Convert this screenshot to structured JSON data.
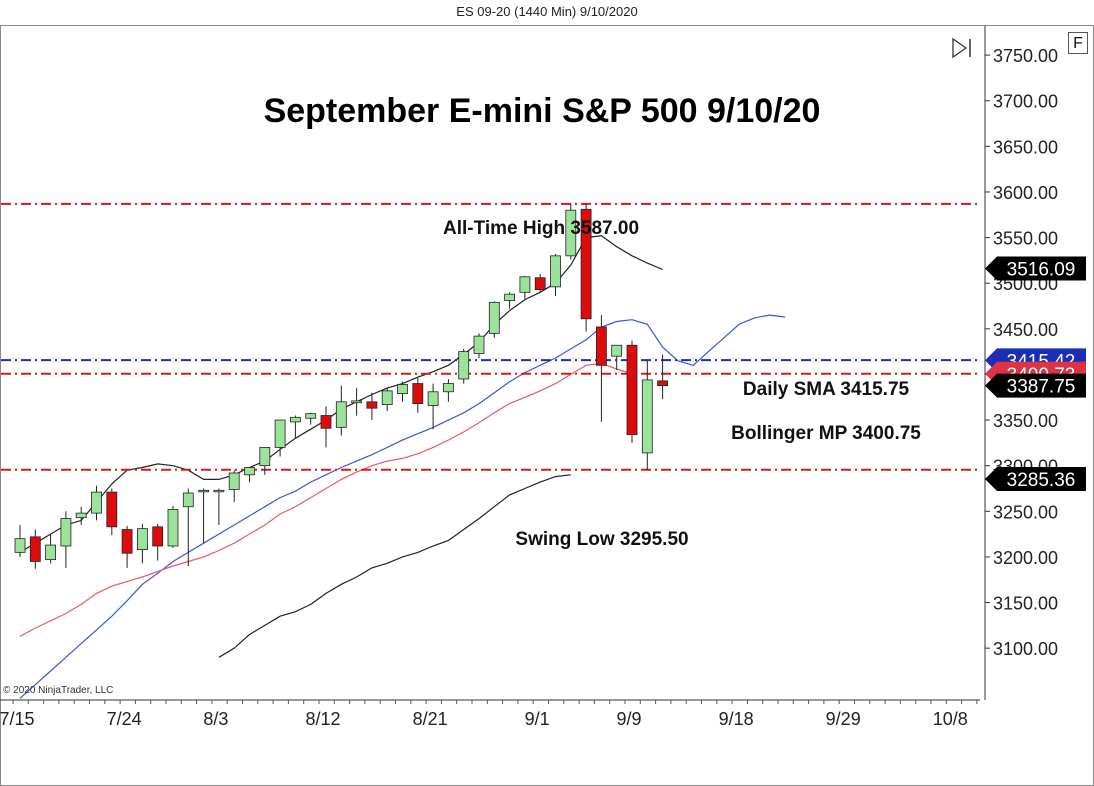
{
  "window": {
    "header": "ES 09-20 (1440 Min)  9/10/2020",
    "f_label": "F",
    "copyright": "© 2020 NinjaTrader, LLC"
  },
  "chart_data": {
    "type": "candlestick",
    "title": "September E-mini S&P 500 9/10/20",
    "ylim": [
      3085,
      3800
    ],
    "y_ticks": [
      "3750.00",
      "3700.00",
      "3650.00",
      "3600.00",
      "3550.00",
      "3500.00",
      "3450.00",
      "3400.00",
      "3350.00",
      "3300.00",
      "3250.00",
      "3200.00",
      "3150.00",
      "3100.00"
    ],
    "y_tick_values": [
      3750,
      3700,
      3650,
      3600,
      3550,
      3500,
      3450,
      3400,
      3350,
      3300,
      3250,
      3200,
      3150,
      3100
    ],
    "x_ticks": [
      "7/15",
      "7/24",
      "8/3",
      "8/12",
      "8/21",
      "9/1",
      "9/9",
      "9/18",
      "9/29",
      "10/8"
    ],
    "x_tick_index": [
      0,
      7,
      13,
      20,
      27,
      34,
      40,
      47,
      54,
      61
    ],
    "colors": {
      "up": "#9be39b",
      "down": "#dd0c0c",
      "outline": "#222222"
    },
    "candles": [
      {
        "o": 3205,
        "h": 3235,
        "l": 3200,
        "c": 3220
      },
      {
        "o": 3222,
        "h": 3230,
        "l": 3187,
        "c": 3195
      },
      {
        "o": 3197,
        "h": 3225,
        "l": 3193,
        "c": 3213
      },
      {
        "o": 3212,
        "h": 3250,
        "l": 3188,
        "c": 3242
      },
      {
        "o": 3243,
        "h": 3255,
        "l": 3235,
        "c": 3248
      },
      {
        "o": 3248,
        "h": 3278,
        "l": 3240,
        "c": 3271
      },
      {
        "o": 3271,
        "h": 3275,
        "l": 3224,
        "c": 3233
      },
      {
        "o": 3230,
        "h": 3234,
        "l": 3188,
        "c": 3204
      },
      {
        "o": 3208,
        "h": 3236,
        "l": 3193,
        "c": 3231
      },
      {
        "o": 3233,
        "h": 3236,
        "l": 3196,
        "c": 3212
      },
      {
        "o": 3212,
        "h": 3256,
        "l": 3210,
        "c": 3252
      },
      {
        "o": 3255,
        "h": 3275,
        "l": 3190,
        "c": 3270
      },
      {
        "o": 3272,
        "h": 3275,
        "l": 3215,
        "c": 3273
      },
      {
        "o": 3272,
        "h": 3275,
        "l": 3235,
        "c": 3273
      },
      {
        "o": 3274,
        "h": 3295,
        "l": 3260,
        "c": 3292
      },
      {
        "o": 3290,
        "h": 3298,
        "l": 3282,
        "c": 3298
      },
      {
        "o": 3300,
        "h": 3320,
        "l": 3290,
        "c": 3320
      },
      {
        "o": 3320,
        "h": 3350,
        "l": 3310,
        "c": 3350
      },
      {
        "o": 3348,
        "h": 3355,
        "l": 3330,
        "c": 3353
      },
      {
        "o": 3352,
        "h": 3358,
        "l": 3345,
        "c": 3357
      },
      {
        "o": 3355,
        "h": 3365,
        "l": 3320,
        "c": 3341
      },
      {
        "o": 3342,
        "h": 3388,
        "l": 3333,
        "c": 3370
      },
      {
        "o": 3369,
        "h": 3385,
        "l": 3355,
        "c": 3371
      },
      {
        "o": 3370,
        "h": 3380,
        "l": 3350,
        "c": 3363
      },
      {
        "o": 3367,
        "h": 3385,
        "l": 3360,
        "c": 3382
      },
      {
        "o": 3379,
        "h": 3392,
        "l": 3370,
        "c": 3389
      },
      {
        "o": 3390,
        "h": 3396,
        "l": 3358,
        "c": 3368
      },
      {
        "o": 3366,
        "h": 3390,
        "l": 3340,
        "c": 3381
      },
      {
        "o": 3381,
        "h": 3395,
        "l": 3370,
        "c": 3390
      },
      {
        "o": 3395,
        "h": 3428,
        "l": 3390,
        "c": 3425
      },
      {
        "o": 3423,
        "h": 3445,
        "l": 3418,
        "c": 3442
      },
      {
        "o": 3445,
        "h": 3480,
        "l": 3440,
        "c": 3479
      },
      {
        "o": 3481,
        "h": 3490,
        "l": 3472,
        "c": 3488
      },
      {
        "o": 3490,
        "h": 3508,
        "l": 3483,
        "c": 3507
      },
      {
        "o": 3506,
        "h": 3510,
        "l": 3490,
        "c": 3493
      },
      {
        "o": 3496,
        "h": 3532,
        "l": 3486,
        "c": 3530
      },
      {
        "o": 3530,
        "h": 3587,
        "l": 3526,
        "c": 3580
      },
      {
        "o": 3581,
        "h": 3587,
        "l": 3447,
        "c": 3461
      },
      {
        "o": 3452,
        "h": 3465,
        "l": 3348,
        "c": 3410
      },
      {
        "o": 3420,
        "h": 3432,
        "l": 3405,
        "c": 3432
      },
      {
        "o": 3432,
        "h": 3437,
        "l": 3325,
        "c": 3334
      },
      {
        "o": 3314,
        "h": 3415,
        "l": 3295.5,
        "c": 3394
      },
      {
        "o": 3393,
        "h": 3422,
        "l": 3373,
        "c": 3387.75
      }
    ],
    "indicator_lines": [
      {
        "name": "Bollinger Upper",
        "color": "#222222",
        "start": 0,
        "values": [
          3205,
          3215,
          3225,
          3235,
          3240,
          3260,
          3280,
          3295,
          3298,
          3302,
          3300,
          3295,
          3285,
          3285,
          3290,
          3298,
          3305,
          3318,
          3330,
          3340,
          3350,
          3362,
          3370,
          3378,
          3385,
          3390,
          3397,
          3403,
          3410,
          3422,
          3435,
          3455,
          3470,
          3482,
          3490,
          3500,
          3520,
          3550,
          3552,
          3540,
          3530,
          3522,
          3515
        ]
      },
      {
        "name": "Bollinger Lower",
        "color": "#222222",
        "start": 13,
        "values": [
          3090,
          3100,
          3115,
          3125,
          3135,
          3140,
          3148,
          3160,
          3170,
          3178,
          3188,
          3193,
          3200,
          3205,
          3212,
          3218,
          3230,
          3242,
          3255,
          3268,
          3275,
          3282,
          3288,
          3290
        ]
      },
      {
        "name": "Daily SMA",
        "color": "#3b55d6",
        "start": 0,
        "values": [
          3045,
          3060,
          3075,
          3090,
          3105,
          3120,
          3135,
          3152,
          3170,
          3182,
          3195,
          3205,
          3215,
          3225,
          3235,
          3245,
          3255,
          3265,
          3272,
          3282,
          3290,
          3298,
          3305,
          3312,
          3320,
          3328,
          3335,
          3342,
          3350,
          3358,
          3368,
          3380,
          3392,
          3402,
          3410,
          3418,
          3428,
          3438,
          3452,
          3458,
          3460,
          3455,
          3430,
          3415,
          3410,
          3425,
          3440,
          3455,
          3462,
          3465,
          3463
        ]
      },
      {
        "name": "Bollinger MP",
        "color": "#e85a6a",
        "start": 0,
        "values": [
          3113,
          3122,
          3130,
          3138,
          3148,
          3160,
          3168,
          3173,
          3178,
          3184,
          3190,
          3195,
          3200,
          3207,
          3215,
          3225,
          3235,
          3247,
          3255,
          3265,
          3275,
          3285,
          3293,
          3300,
          3305,
          3308,
          3313,
          3320,
          3328,
          3337,
          3347,
          3358,
          3368,
          3375,
          3382,
          3390,
          3400,
          3410,
          3412,
          3406,
          3400.75
        ]
      }
    ],
    "annotations": {
      "all_time_high": {
        "label": "All-Time High 3587.00",
        "value": 3587
      },
      "daily_sma": {
        "label": "Daily SMA 3415.75",
        "value": 3415.75
      },
      "bollinger_mp": {
        "label": "Bollinger MP 3400.75",
        "value": 3400.75
      },
      "swing_low": {
        "label": "Swing Low 3295.50",
        "value": 3295.5
      }
    },
    "price_markers": [
      {
        "label": "3516.09",
        "value": 3516.09,
        "color": "#000000"
      },
      {
        "label": "3415.42",
        "value": 3415.42,
        "color": "#1a2fb8"
      },
      {
        "label": "3400.73",
        "value": 3400.73,
        "color": "#dd3344"
      },
      {
        "label": "3387.75",
        "value": 3387.75,
        "color": "#000000"
      },
      {
        "label": "3285.36",
        "value": 3285.36,
        "color": "#000000"
      }
    ]
  }
}
